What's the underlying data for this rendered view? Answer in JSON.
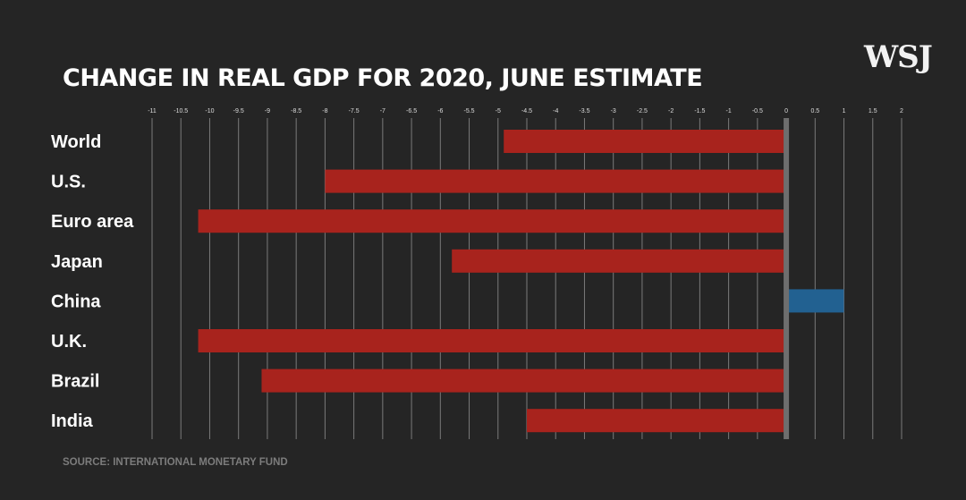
{
  "logo": "WSJ",
  "title": "CHANGE IN REAL GDP FOR 2020, JUNE ESTIMATE",
  "source": "SOURCE: INTERNATIONAL MONETARY FUND",
  "colors": {
    "background": "#252525",
    "negative": "#a8231d",
    "positive": "#226191",
    "zero_line": "#6e6e6e",
    "gridline": "#7a7a7a"
  },
  "chart_data": {
    "type": "bar",
    "orientation": "horizontal",
    "title": "CHANGE IN REAL GDP FOR 2020, JUNE ESTIMATE",
    "categories": [
      "World",
      "U.S.",
      "Euro area",
      "Japan",
      "China",
      "U.K.",
      "Brazil",
      "India"
    ],
    "values": [
      -4.9,
      -8.0,
      -10.2,
      -5.8,
      1.0,
      -10.2,
      -9.1,
      -4.5
    ],
    "xlim": [
      -11,
      2
    ],
    "ticks": [
      "-11",
      "-10.5",
      "-10",
      "-9.5",
      "-9",
      "-8.5",
      "-8",
      "-7.5",
      "-7",
      "-6.5",
      "-6",
      "-5.5",
      "-5",
      "-4.5",
      "-4",
      "-3.5",
      "-3",
      "-2.5",
      "-2",
      "-1.5",
      "-1",
      "-0.5",
      "0",
      "0.5",
      "1",
      "1.5",
      "2"
    ],
    "tick_position": "top",
    "grid": true,
    "legend": "none"
  }
}
